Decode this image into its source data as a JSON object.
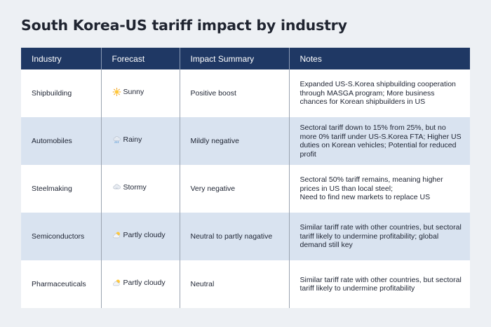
{
  "title": "South Korea-US tariff impact by industry",
  "table": {
    "headers": [
      "Industry",
      "Forecast",
      "Impact Summary",
      "Notes"
    ],
    "rows": [
      {
        "industry": "Shipbuilding",
        "forecast": "Sunny",
        "forecast_icon": "sun-icon",
        "impact": "Positive boost",
        "notes": "Expanded US-S.Korea shipbuilding cooperation through MASGA program; More business chances for Korean shipbuilders in US"
      },
      {
        "industry": "Automobiles",
        "forecast": "Rainy",
        "forecast_icon": "rain-cloud-icon",
        "impact": "Mildly negative",
        "notes": "Sectoral tariff down to 15% from 25%, but no more 0% tariff under US-S.Korea FTA; Higher US duties on Korean vehicles; Potential for reduced profit"
      },
      {
        "industry": "Steelmaking",
        "forecast": "Stormy",
        "forecast_icon": "storm-cloud-icon",
        "impact": "Very negative",
        "notes": "Sectoral 50% tariff remains, meaning higher prices in US than local steel;\nNeed to find new markets to replace US"
      },
      {
        "industry": "Semiconductors",
        "forecast": "Partly cloudy",
        "forecast_icon": "partly-cloudy-icon",
        "impact": "Neutral to partly nagative",
        "notes": "Similar tariff rate with other countries, but sectoral tariff likely to undermine profitability; global demand still key"
      },
      {
        "industry": "Pharmaceuticals",
        "forecast": "Partly cloudy",
        "forecast_icon": "partly-cloudy-icon",
        "impact": "Neutral",
        "notes": "Similar tariff rate with other countries, but sectoral tariff likely to undermine profitability"
      }
    ]
  },
  "colors": {
    "header_bg": "#1f3864",
    "row_alt_bg": "#d9e3f0",
    "page_bg": "#edf0f4"
  }
}
